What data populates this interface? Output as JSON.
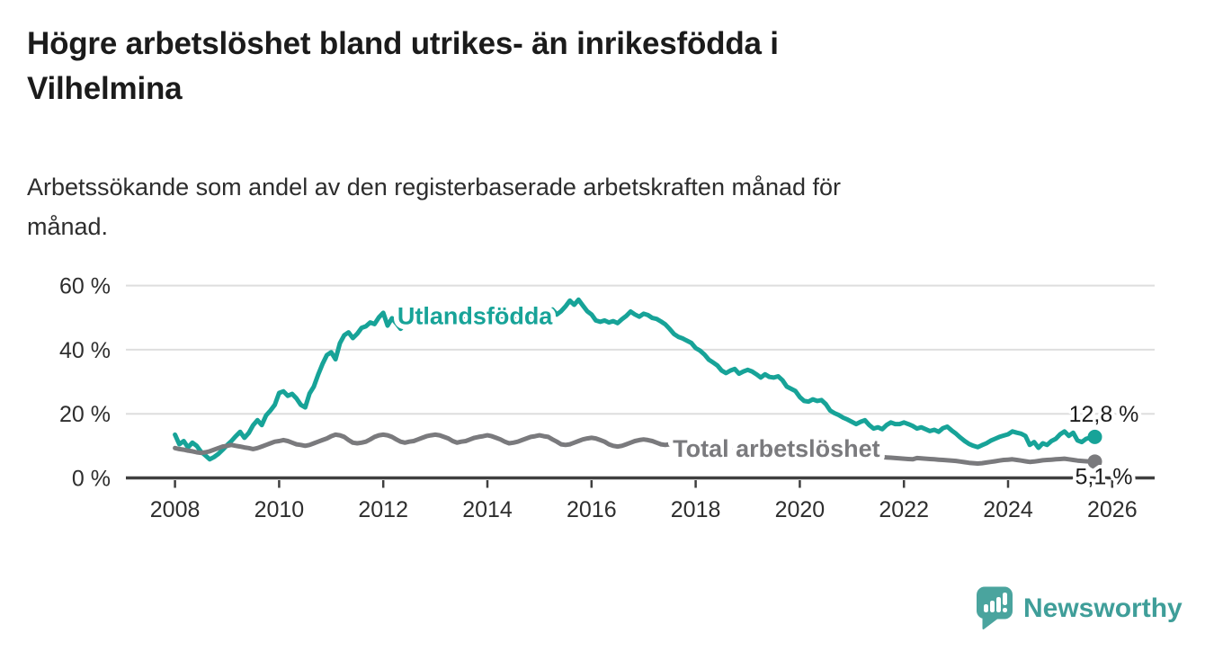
{
  "title": {
    "lines": [
      "Högre arbetslöshet bland utrikes- än inrikesfödda i",
      "Vilhelmina"
    ]
  },
  "subtitle": {
    "lines": [
      "Arbetssökande som andel av den registerbaserade arbetskraften månad för",
      "månad."
    ]
  },
  "branding": {
    "name": "Newsworthy",
    "icon": "bar-chart-speech-bubble",
    "icon_color": "#4aa49e",
    "text_color": "#3f9e99"
  },
  "colors": {
    "utlandsfodda": "#17a398",
    "total": "#7a7a7d",
    "grid": "#dedede",
    "axis": "#3f3f3f",
    "end_label_text": "#1d1d1d"
  },
  "chart_data": {
    "type": "line",
    "title": "Högre arbetslöshet bland utrikes- än inrikesfödda i Vilhelmina",
    "subtitle": "Arbetssökande som andel av den registerbaserade arbetskraften månad för månad.",
    "unit": "percent of registered labour force",
    "grid": true,
    "legend_position": "inline-labels",
    "x_axis": {
      "tick_values": [
        2008,
        2010,
        2012,
        2014,
        2016,
        2018,
        2020,
        2022,
        2024,
        2026
      ],
      "tick_labels": [
        "2008",
        "2010",
        "2012",
        "2014",
        "2016",
        "2018",
        "2020",
        "2022",
        "2024",
        "2026"
      ],
      "range": [
        2007.8,
        2026.8
      ]
    },
    "y_axis": {
      "tick_values": [
        0,
        20,
        40,
        60
      ],
      "tick_labels": [
        "0 %",
        "20 %",
        "40 %",
        "60 %"
      ],
      "range": [
        0,
        62
      ]
    },
    "series": [
      {
        "name": "Utlandsfödda",
        "color": "#17a398",
        "start_year": 2008,
        "interval_months": 1,
        "end_label": "12,8 %",
        "end_value": 12.8,
        "label": {
          "text": "Utlandsfödda",
          "x_year": 2012.27,
          "baseline_pct": 47.9
        },
        "values": [
          13.5,
          10.5,
          11.5,
          9.5,
          11.0,
          10.0,
          8.2,
          7.0,
          5.8,
          6.5,
          7.5,
          8.8,
          10.2,
          11.5,
          13.0,
          14.4,
          12.5,
          14.0,
          16.4,
          18.0,
          16.5,
          19.5,
          21.0,
          22.8,
          26.5,
          27.0,
          25.6,
          26.2,
          24.8,
          22.8,
          22.0,
          26.3,
          28.5,
          32.2,
          35.5,
          38.3,
          39.2,
          37.0,
          42.0,
          44.5,
          45.4,
          43.6,
          45.0,
          46.8,
          47.3,
          48.5,
          48.0,
          50.1,
          51.5,
          47.5,
          49.8,
          48.2,
          46.5,
          48.0,
          49.0,
          48.2,
          49.5,
          50.5,
          49.2,
          50.0,
          50.5,
          49.2,
          50.2,
          51.0,
          49.5,
          50.5,
          49.2,
          50.0,
          51.5,
          50.5,
          49.5,
          50.5,
          51.0,
          49.5,
          50.5,
          49.2,
          50.0,
          51.0,
          50.0,
          49.2,
          50.5,
          51.5,
          50.5,
          51.5,
          52.0,
          50.5,
          51.5,
          52.5,
          51.0,
          52.0,
          53.5,
          55.3,
          54.0,
          55.6,
          53.8,
          52.0,
          51.0,
          49.1,
          48.7,
          49.1,
          48.5,
          48.9,
          48.3,
          49.5,
          50.5,
          51.9,
          51.0,
          50.3,
          51.2,
          50.8,
          49.9,
          49.6,
          48.8,
          47.9,
          46.5,
          44.9,
          44.0,
          43.5,
          42.8,
          42.1,
          40.5,
          39.7,
          38.5,
          36.9,
          36.0,
          35.1,
          33.5,
          32.7,
          33.5,
          34.0,
          32.5,
          33.2,
          33.7,
          33.2,
          32.3,
          31.3,
          32.3,
          31.5,
          31.3,
          31.7,
          30.5,
          28.5,
          27.8,
          27.1,
          25.2,
          24.0,
          23.8,
          24.5,
          24.0,
          24.3,
          23.0,
          21.0,
          20.2,
          19.6,
          18.8,
          18.2,
          17.5,
          16.8,
          17.5,
          18.0,
          16.5,
          15.4,
          15.8,
          15.2,
          16.5,
          17.3,
          16.8,
          16.8,
          17.3,
          16.8,
          16.2,
          15.4,
          15.8,
          15.2,
          14.6,
          15.0,
          14.4,
          15.5,
          16.0,
          14.8,
          13.8,
          12.6,
          11.5,
          10.6,
          10.0,
          9.6,
          10.2,
          10.8,
          11.6,
          12.2,
          12.8,
          13.2,
          13.6,
          14.5,
          14.1,
          13.8,
          13.1,
          10.3,
          11.2,
          9.4,
          10.8,
          10.3,
          11.5,
          12.2,
          13.6,
          14.5,
          13.1,
          14.1,
          11.7,
          11.2,
          12.2,
          12.6,
          12.8
        ]
      },
      {
        "name": "Total arbetslöshet",
        "color": "#7a7a7d",
        "start_year": 2008,
        "interval_months": 1,
        "end_label": "5,1 %",
        "end_value": 5.1,
        "label": {
          "text": "Total arbetslöshet",
          "x_year": 2017.56,
          "baseline_pct": 6.6
        },
        "values": [
          9.3,
          9.0,
          8.8,
          8.5,
          8.3,
          8.0,
          7.8,
          8.0,
          8.3,
          8.8,
          9.3,
          9.8,
          10.0,
          10.3,
          10.0,
          9.8,
          9.5,
          9.3,
          9.0,
          9.3,
          9.8,
          10.3,
          10.8,
          11.3,
          11.5,
          11.8,
          11.5,
          11.0,
          10.5,
          10.3,
          10.0,
          10.3,
          10.8,
          11.3,
          11.8,
          12.3,
          13.0,
          13.5,
          13.3,
          12.8,
          11.8,
          11.0,
          10.8,
          11.0,
          11.3,
          12.0,
          12.8,
          13.3,
          13.5,
          13.3,
          12.8,
          12.0,
          11.3,
          11.0,
          11.3,
          11.5,
          12.0,
          12.5,
          13.0,
          13.3,
          13.5,
          13.3,
          12.8,
          12.3,
          11.5,
          11.0,
          11.3,
          11.5,
          12.0,
          12.5,
          12.8,
          13.0,
          13.3,
          13.0,
          12.5,
          12.0,
          11.3,
          10.8,
          11.0,
          11.3,
          11.8,
          12.3,
          12.8,
          13.0,
          13.3,
          13.0,
          12.8,
          12.0,
          11.3,
          10.5,
          10.3,
          10.5,
          11.0,
          11.5,
          12.0,
          12.3,
          12.5,
          12.3,
          11.8,
          11.3,
          10.5,
          10.0,
          9.8,
          10.0,
          10.5,
          11.0,
          11.5,
          11.8,
          12.0,
          11.8,
          11.5,
          11.0,
          10.5,
          10.3,
          10.5,
          10.8,
          11.0,
          11.0,
          10.8,
          10.5,
          10.3,
          10.0,
          9.8,
          9.5,
          9.3,
          9.0,
          8.8,
          8.7,
          8.8,
          9.0,
          9.2,
          9.3,
          9.4,
          9.5,
          9.3,
          9.0,
          8.8,
          8.6,
          8.5,
          8.6,
          8.8,
          9.0,
          9.2,
          9.4,
          9.5,
          9.6,
          9.8,
          10.0,
          9.8,
          9.5,
          9.2,
          9.0,
          8.8,
          8.5,
          8.3,
          8.0,
          7.8,
          7.6,
          7.4,
          7.2,
          7.0,
          6.8,
          6.6,
          6.5,
          6.4,
          6.3,
          6.2,
          6.1,
          6.0,
          5.9,
          5.8,
          6.2,
          6.1,
          6.0,
          5.9,
          5.8,
          5.7,
          5.6,
          5.5,
          5.4,
          5.3,
          5.1,
          4.9,
          4.7,
          4.6,
          4.5,
          4.6,
          4.8,
          5.0,
          5.2,
          5.4,
          5.6,
          5.7,
          5.8,
          5.6,
          5.4,
          5.2,
          5.0,
          5.1,
          5.3,
          5.5,
          5.6,
          5.7,
          5.8,
          5.9,
          6.0,
          5.8,
          5.6,
          5.4,
          5.3,
          5.2,
          5.1,
          5.1
        ]
      }
    ]
  }
}
